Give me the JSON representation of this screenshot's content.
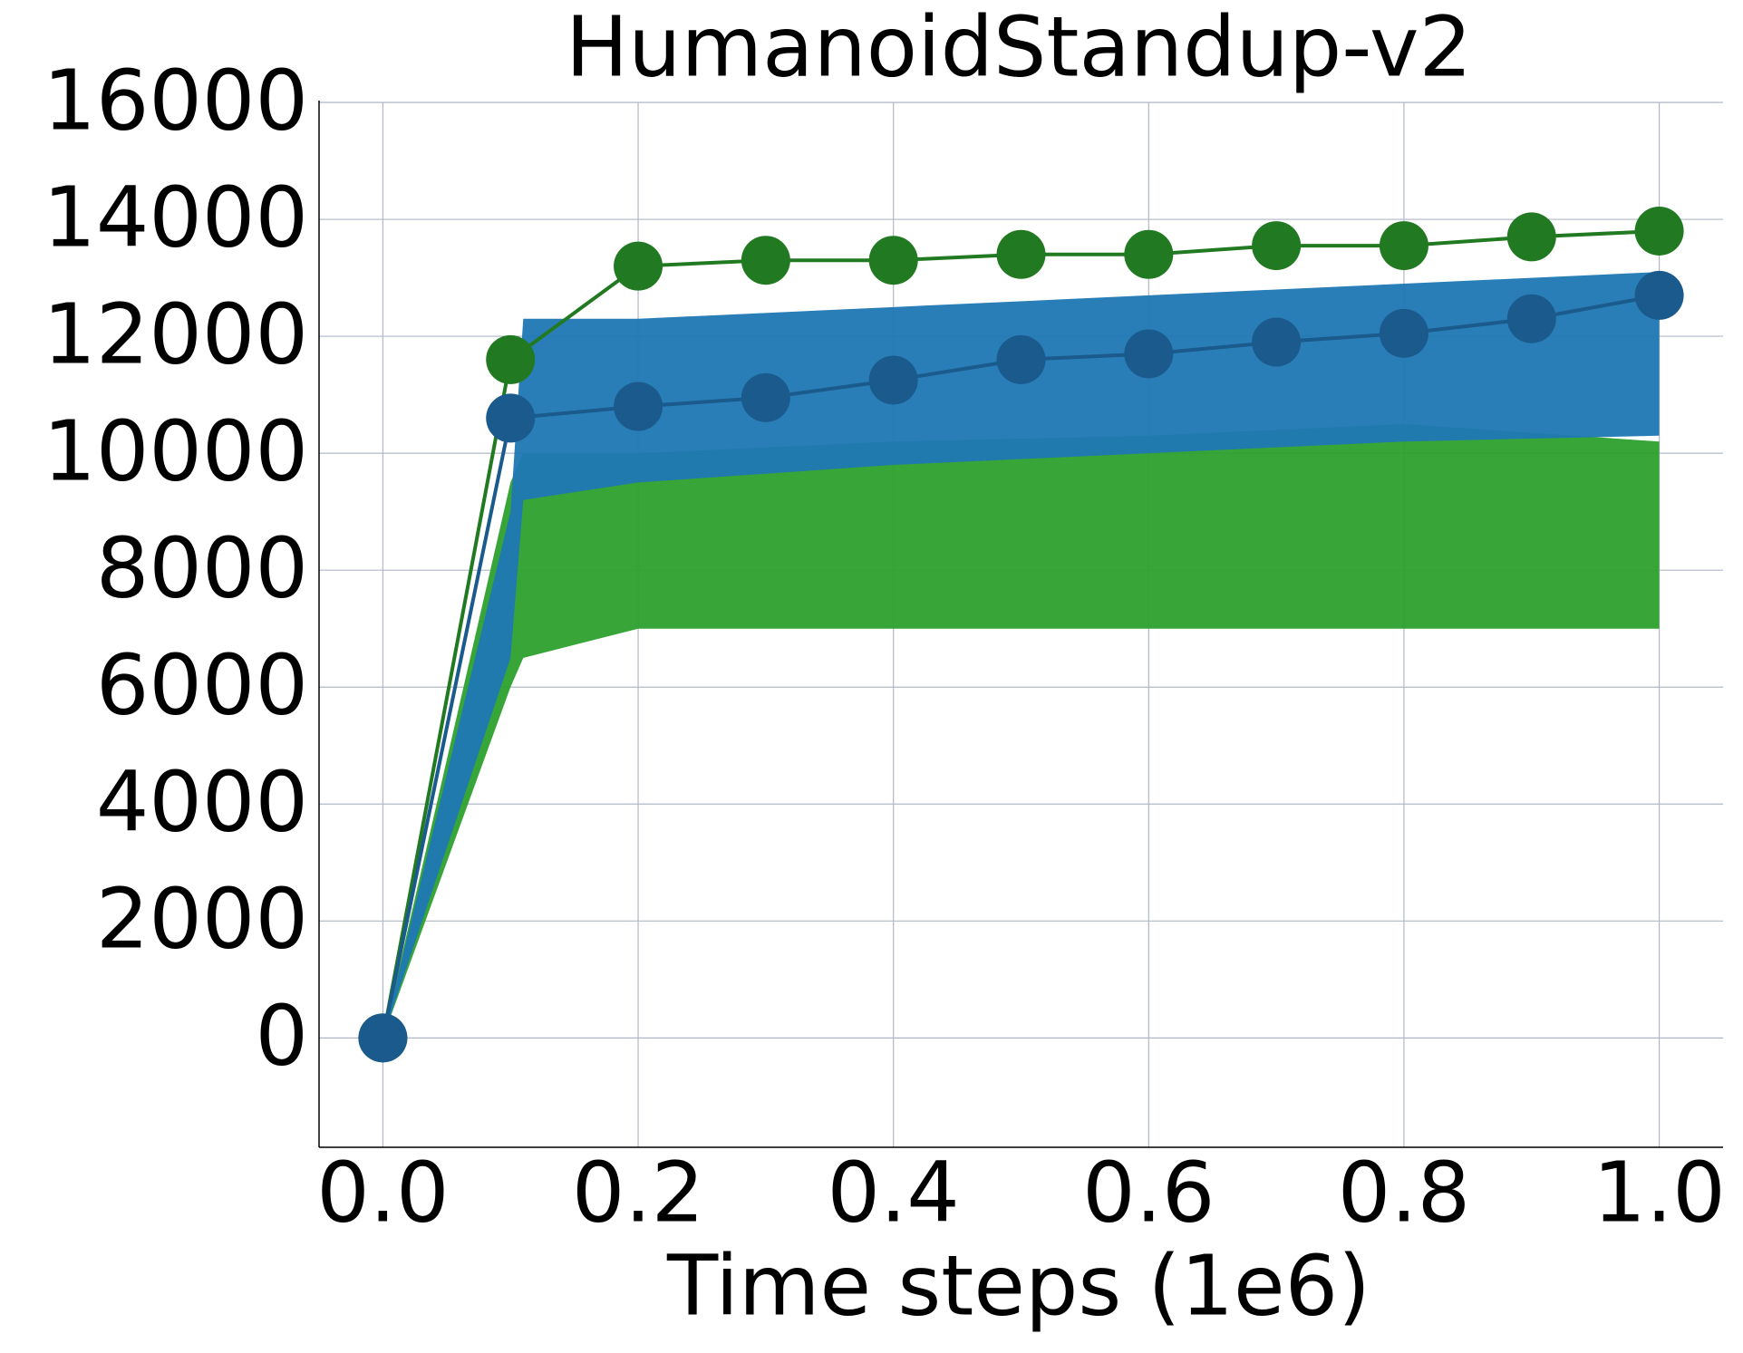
{
  "chart_data": {
    "type": "line",
    "title": "HumanoidStandup-v2",
    "xlabel": "Time steps (1e6)",
    "xlim": [
      -0.05,
      1.05
    ],
    "ylim": [
      -1870,
      16000
    ],
    "xticks": [
      {
        "value": 0,
        "label": "0.0"
      },
      0.2,
      0.4,
      0.6,
      0.8,
      {
        "value": 1,
        "label": "1.0"
      }
    ],
    "yticks": [
      0,
      2000,
      4000,
      6000,
      8000,
      10000,
      12000,
      14000,
      16000
    ],
    "grid": true,
    "bands": [
      {
        "color": "#2ca02c",
        "x": [
          0,
          0.1,
          0.11,
          0.2,
          0.4,
          0.6,
          0.8,
          1.0
        ],
        "lower": [
          0,
          6000,
          6500,
          7000,
          7000,
          7000,
          7000,
          7000
        ],
        "upper": [
          0,
          9500,
          10000,
          10000,
          10200,
          10300,
          10500,
          10200
        ]
      },
      {
        "color": "#1f77b4",
        "x": [
          0,
          0.1,
          0.11,
          0.2,
          0.4,
          0.6,
          0.8,
          1.0
        ],
        "lower": [
          0,
          6500,
          9200,
          9500,
          9800,
          10000,
          10200,
          10300
        ],
        "upper": [
          0,
          9000,
          12300,
          12300,
          12500,
          12700,
          12900,
          13100
        ]
      }
    ],
    "x": [
      0,
      0.1,
      0.2,
      0.3,
      0.4,
      0.5,
      0.6,
      0.7,
      0.8,
      0.9,
      1.0
    ],
    "series": [
      {
        "color": "#217a21",
        "values": [
          0,
          11600,
          13200,
          13300,
          13300,
          13400,
          13400,
          13550,
          13550,
          13700,
          13800
        ]
      },
      {
        "color": "#1a5a8c",
        "values": [
          0,
          10600,
          10800,
          10950,
          11250,
          11600,
          11700,
          11900,
          12050,
          12300,
          12700
        ]
      }
    ]
  }
}
